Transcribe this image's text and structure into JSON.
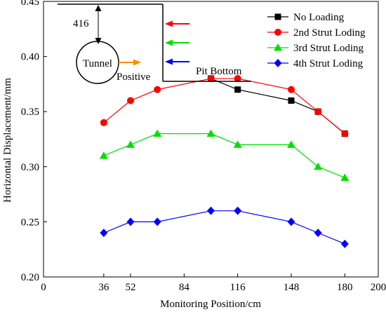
{
  "chart_data": {
    "type": "line",
    "title": "",
    "xlabel": "Monitoring Position/cm",
    "ylabel": "Horizontal Displacement/mm",
    "xlim": [
      0,
      200
    ],
    "ylim": [
      0.2,
      0.45
    ],
    "xticks": [
      0,
      36,
      52,
      84,
      116,
      148,
      180,
      200
    ],
    "yticks": [
      0.2,
      0.25,
      0.3,
      0.35,
      0.4,
      0.45
    ],
    "grid": false,
    "legend_position": "top-right",
    "x": [
      36,
      52,
      68,
      100,
      116,
      148,
      164,
      180
    ],
    "series": [
      {
        "name": "No Loading",
        "color": "#000000",
        "marker": "square",
        "values": [
          null,
          null,
          null,
          0.38,
          0.37,
          0.36,
          0.35,
          0.33
        ]
      },
      {
        "name": "2nd Strut Loding",
        "color": "#ff0000",
        "marker": "circle",
        "values": [
          0.34,
          0.36,
          0.37,
          0.38,
          0.38,
          0.37,
          0.35,
          0.33
        ]
      },
      {
        "name": "3rd Strut Loding",
        "color": "#00e000",
        "marker": "triangle",
        "values": [
          0.31,
          0.32,
          0.33,
          0.33,
          0.32,
          0.32,
          0.3,
          0.29
        ]
      },
      {
        "name": "4th Strut Loding",
        "color": "#0000ff",
        "marker": "diamond",
        "values": [
          0.24,
          0.25,
          0.25,
          0.26,
          0.26,
          0.25,
          0.24,
          0.23
        ]
      }
    ],
    "inset": {
      "depth_label": "416",
      "tunnel_label": "Tunnel",
      "positive_label": "Positive",
      "pit_bottom_label": "Pit Bottom",
      "arrow_color": "#ff8c00"
    }
  }
}
